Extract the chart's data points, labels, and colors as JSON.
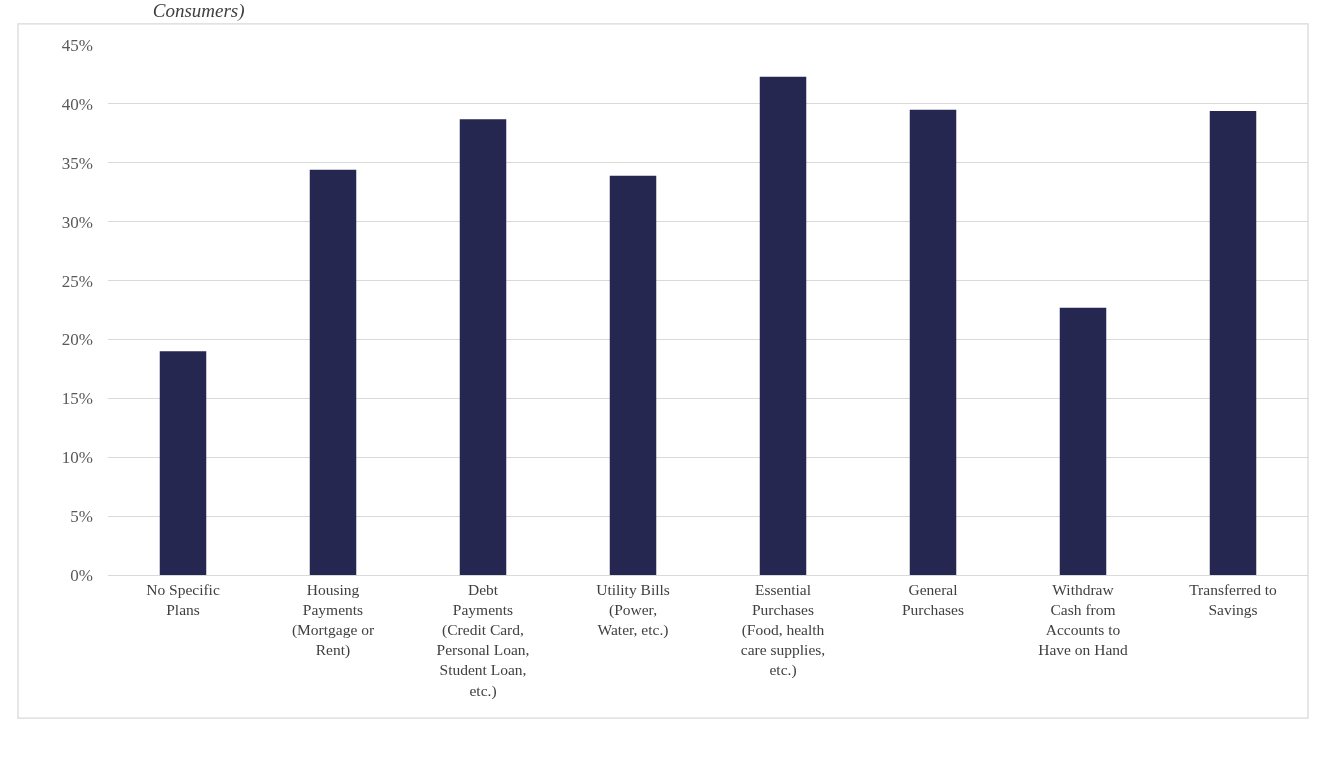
{
  "chart_data": {
    "type": "bar",
    "title": "Consumers)",
    "categories": [
      "No Specific\nPlans",
      "Housing\nPayments\n(Mortgage or\nRent)",
      "Debt\nPayments\n(Credit Card,\nPersonal Loan,\nStudent Loan,\netc.)",
      "Utility Bills\n(Power,\nWater, etc.)",
      "Essential\nPurchases\n(Food, health\ncare supplies,\netc.)",
      "General\nPurchases",
      "Withdraw\nCash from\nAccounts to\nHave on Hand",
      "Transferred to\nSavings"
    ],
    "values": [
      19.0,
      34.4,
      38.7,
      33.9,
      42.3,
      39.5,
      22.7,
      39.4
    ],
    "color": "#252751",
    "ylim": [
      0,
      45
    ],
    "yticks": [
      {
        "value": 0,
        "label": "0%"
      },
      {
        "value": 5,
        "label": "5%"
      },
      {
        "value": 10,
        "label": "10%"
      },
      {
        "value": 15,
        "label": "15%"
      },
      {
        "value": 20,
        "label": "20%"
      },
      {
        "value": 25,
        "label": "25%"
      },
      {
        "value": 30,
        "label": "30%"
      },
      {
        "value": 35,
        "label": "35%"
      },
      {
        "value": 40,
        "label": "40%"
      },
      {
        "value": 45,
        "label": "45%"
      }
    ],
    "grid": "y"
  }
}
